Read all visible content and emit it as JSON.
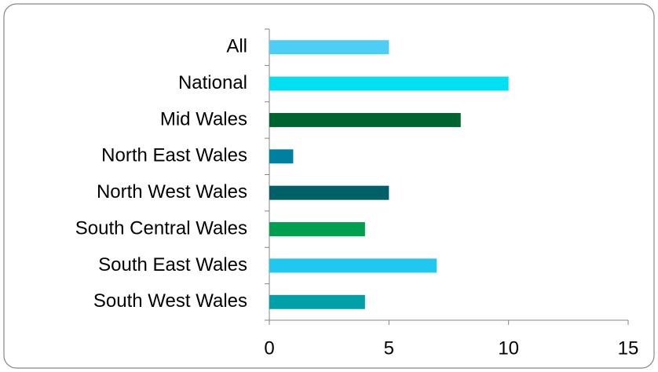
{
  "chart_data": {
    "type": "bar",
    "orientation": "horizontal",
    "categories": [
      "All",
      "National",
      "Mid Wales",
      "North East Wales",
      "North West Wales",
      "South Central Wales",
      "South East Wales",
      "South West Wales"
    ],
    "values": [
      5,
      10,
      8,
      1,
      5,
      4,
      7,
      4
    ],
    "colors": [
      "#4dcff5",
      "#00e0f0",
      "#006430",
      "#0080a0",
      "#006068",
      "#00a050",
      "#20c8f0",
      "#00a0a8"
    ],
    "xlim": [
      0,
      15
    ],
    "xticks": [
      0,
      5,
      10,
      15
    ],
    "grid": false
  }
}
